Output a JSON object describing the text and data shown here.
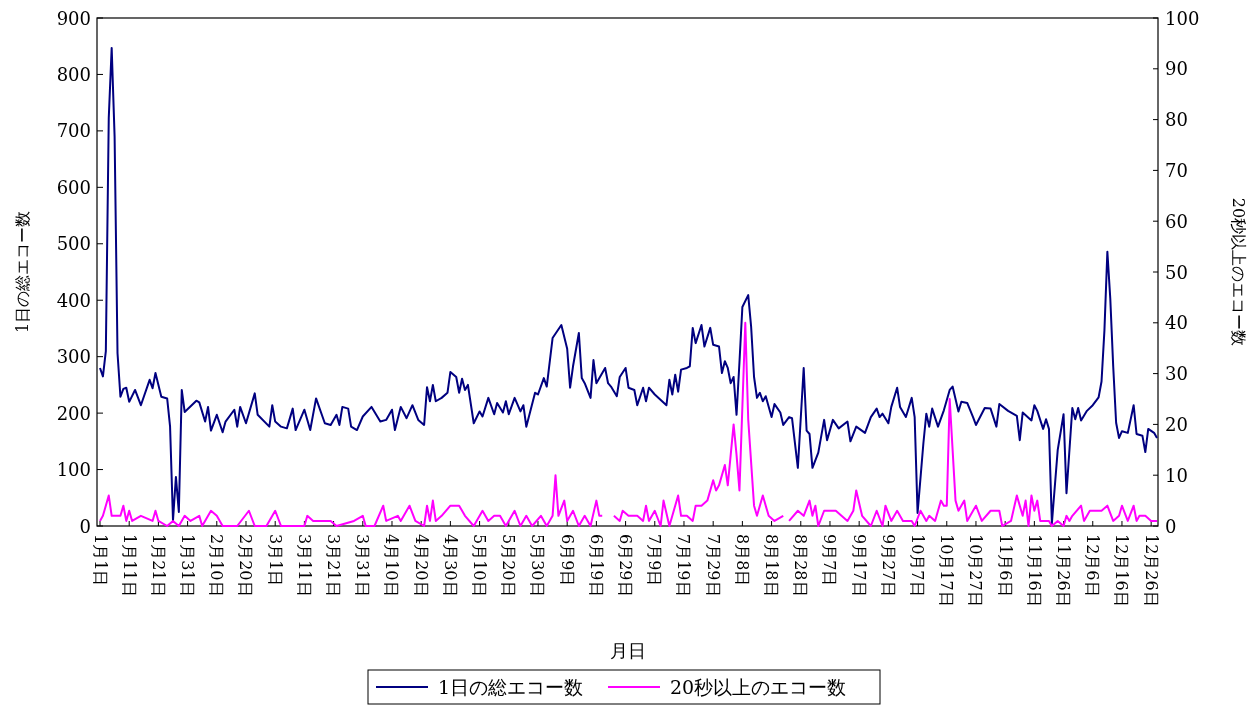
{
  "chart_data": {
    "type": "line",
    "xlabel": "月日",
    "ylabel": "1日の総エコー数",
    "y2label": "20秒以上のエコー数",
    "legend": "bottom",
    "marker": "none",
    "xlim": [
      "--01-01",
      "--12-28"
    ],
    "xticks": [
      {
        "value": "--01-01",
        "label": "1月1日"
      },
      {
        "value": "--01-11",
        "label": "1月11日"
      },
      {
        "value": "--01-21",
        "label": "1月21日"
      },
      {
        "value": "--01-31",
        "label": "1月31日"
      },
      {
        "value": "--02-10",
        "label": "2月10日"
      },
      {
        "value": "--02-20",
        "label": "2月20日"
      },
      {
        "value": "--03-01",
        "label": "3月1日"
      },
      {
        "value": "--03-11",
        "label": "3月11日"
      },
      {
        "value": "--03-21",
        "label": "3月21日"
      },
      {
        "value": "--03-31",
        "label": "3月31日"
      },
      {
        "value": "--04-10",
        "label": "4月10日"
      },
      {
        "value": "--04-20",
        "label": "4月20日"
      },
      {
        "value": "--04-30",
        "label": "4月30日"
      },
      {
        "value": "--05-10",
        "label": "5月10日"
      },
      {
        "value": "--05-20",
        "label": "5月20日"
      },
      {
        "value": "--05-30",
        "label": "5月30日"
      },
      {
        "value": "--06-09",
        "label": "6月9日"
      },
      {
        "value": "--06-19",
        "label": "6月19日"
      },
      {
        "value": "--06-29",
        "label": "6月29日"
      },
      {
        "value": "--07-09",
        "label": "7月9日"
      },
      {
        "value": "--07-19",
        "label": "7月19日"
      },
      {
        "value": "--07-29",
        "label": "7月29日"
      },
      {
        "value": "--08-08",
        "label": "8月8日"
      },
      {
        "value": "--08-18",
        "label": "8月18日"
      },
      {
        "value": "--08-28",
        "label": "8月28日"
      },
      {
        "value": "--09-07",
        "label": "9月7日"
      },
      {
        "value": "--09-17",
        "label": "9月17日"
      },
      {
        "value": "--09-27",
        "label": "9月27日"
      },
      {
        "value": "--10-07",
        "label": "10月7日"
      },
      {
        "value": "--10-17",
        "label": "10月17日"
      },
      {
        "value": "--10-27",
        "label": "10月27日"
      },
      {
        "value": "--11-06",
        "label": "11月6日"
      },
      {
        "value": "--11-16",
        "label": "11月16日"
      },
      {
        "value": "--11-26",
        "label": "11月26日"
      },
      {
        "value": "--12-06",
        "label": "12月6日"
      },
      {
        "value": "--12-16",
        "label": "12月16日"
      },
      {
        "value": "--12-26",
        "label": "12月26日"
      }
    ],
    "ylim": [
      0,
      900
    ],
    "yticks": [
      0,
      100,
      200,
      300,
      400,
      500,
      600,
      700,
      800,
      900
    ],
    "y2lim": [
      0,
      100
    ],
    "y2ticks": [
      0,
      10,
      20,
      30,
      40,
      50,
      60,
      70,
      80,
      90,
      100
    ],
    "series": [
      {
        "name": "1日の総エコー数",
        "color": "#000080",
        "x": [
          "--01-01",
          "--01-02",
          "--01-03",
          "--01-04",
          "--01-05",
          "--01-06",
          "--01-07",
          "--01-08",
          "--01-09",
          "--01-10",
          "--01-11",
          "--01-13",
          "--01-15",
          "--01-18",
          "--01-19",
          "--01-20",
          "--01-22",
          "--01-24",
          "--01-25",
          "--01-26",
          "--01-27",
          "--01-28",
          "--01-29",
          "--01-30",
          "--02-03",
          "--02-04",
          "--02-06",
          "--02-07",
          "--02-08",
          "--02-10",
          "--02-12",
          "--02-13",
          "--02-16",
          "--02-17",
          "--02-18",
          "--02-20",
          "--02-23",
          "--02-24",
          "--02-28",
          "--02-29",
          "--03-01",
          "--03-03",
          "--03-05",
          "--03-07",
          "--03-08",
          "--03-11",
          "--03-13",
          "--03-15",
          "--03-18",
          "--03-20",
          "--03-22",
          "--03-23",
          "--03-24",
          "--03-26",
          "--03-27",
          "--03-29",
          "--03-31",
          "--04-03",
          "--04-06",
          "--04-08",
          "--04-10",
          "--04-11",
          "--04-13",
          "--04-15",
          "--04-17",
          "--04-19",
          "--04-21",
          "--04-22",
          "--04-23",
          "--04-24",
          "--04-25",
          "--04-27",
          "--04-29",
          "--04-30",
          "--05-02",
          "--05-03",
          "--05-04",
          "--05-05",
          "--05-06",
          "--05-08",
          "--05-10",
          "--05-11",
          "--05-13",
          "--05-15",
          "--05-16",
          "--05-18",
          "--05-19",
          "--05-20",
          "--05-22",
          "--05-24",
          "--05-25",
          "--05-26",
          "--05-29",
          "--05-30",
          "--06-01",
          "--06-02",
          "--06-04",
          "--06-07",
          "--06-09",
          "--06-10",
          "--06-11",
          "--06-13",
          "--06-14",
          "--06-15",
          "--06-17",
          "--06-18",
          "--06-19",
          "--06-22",
          "--06-23",
          "--06-24",
          "--06-26",
          "--06-27",
          "--06-29",
          "--06-30",
          "--07-02",
          "--07-03",
          "--07-05",
          "--07-06",
          "--07-07",
          "--07-09",
          "--07-13",
          "--07-14",
          "--07-15",
          "--07-16",
          "--07-17",
          "--07-18",
          "--07-20",
          "--07-21",
          "--07-22",
          "--07-23",
          "--07-25",
          "--07-26",
          "--07-28",
          "--07-29",
          "--07-31",
          "--08-01",
          "--08-02",
          "--08-03",
          "--08-04",
          "--08-05",
          "--08-06",
          "--08-07",
          "--08-08",
          "--08-10",
          "--08-11",
          "--08-12",
          "--08-13",
          "--08-14",
          "--08-15",
          "--08-16",
          "--08-18",
          "--08-19",
          "--08-21",
          "--08-22",
          "--08-24",
          "--08-25",
          "--08-27",
          "--08-29",
          "--08-30",
          "--08-31",
          "--09-01",
          "--09-03",
          "--09-05",
          "--09-06",
          "--09-08",
          "--09-10",
          "--09-13",
          "--09-14",
          "--09-16",
          "--09-19",
          "--09-21",
          "--09-23",
          "--09-24",
          "--09-25",
          "--09-27",
          "--09-28",
          "--09-30",
          "--10-01",
          "--10-03",
          "--10-05",
          "--10-06",
          "--10-07",
          "--10-09",
          "--10-10",
          "--10-11",
          "--10-12",
          "--10-14",
          "--10-16",
          "--10-18",
          "--10-19",
          "--10-21",
          "--10-22",
          "--10-24",
          "--10-26",
          "--10-27",
          "--10-30",
          "--11-01",
          "--11-03",
          "--11-04",
          "--11-07",
          "--11-10",
          "--11-11",
          "--11-12",
          "--11-15",
          "--11-16",
          "--11-17",
          "--11-19",
          "--11-20",
          "--11-21",
          "--11-22",
          "--11-24",
          "--11-26",
          "--11-27",
          "--11-29",
          "--11-30",
          "--12-01",
          "--12-02",
          "--12-04",
          "--12-06",
          "--12-08",
          "--12-09",
          "--12-10",
          "--12-11",
          "--12-12",
          "--12-13",
          "--12-14",
          "--12-15",
          "--12-16",
          "--12-18",
          "--12-20",
          "--12-21",
          "--12-23",
          "--12-24",
          "--12-25",
          "--12-27",
          "--12-28"
        ],
        "values": [
          280,
          265,
          310,
          723,
          847,
          690,
          306,
          229,
          243,
          245,
          220,
          241,
          214,
          259,
          244,
          271,
          229,
          226,
          176,
          10,
          87,
          25,
          241,
          202,
          222,
          219,
          185,
          211,
          169,
          197,
          166,
          185,
          206,
          176,
          211,
          182,
          235,
          197,
          176,
          214,
          185,
          176,
          173,
          208,
          170,
          206,
          170,
          226,
          182,
          179,
          197,
          179,
          211,
          208,
          176,
          170,
          194,
          211,
          185,
          188,
          206,
          170,
          211,
          191,
          214,
          188,
          179,
          246,
          221,
          250,
          221,
          227,
          236,
          273,
          264,
          236,
          261,
          241,
          250,
          182,
          203,
          194,
          227,
          198,
          218,
          201,
          221,
          198,
          227,
          203,
          214,
          176,
          236,
          233,
          262,
          247,
          333,
          356,
          314,
          245,
          283,
          342,
          262,
          253,
          227,
          294,
          253,
          280,
          253,
          247,
          230,
          264,
          280,
          245,
          241,
          214,
          245,
          221,
          245,
          233,
          214,
          259,
          233,
          268,
          238,
          277,
          280,
          283,
          351,
          324,
          356,
          318,
          351,
          321,
          318,
          271,
          292,
          280,
          253,
          264,
          197,
          290,
          388,
          409,
          353,
          264,
          227,
          236,
          221,
          230,
          193,
          216,
          201,
          179,
          193,
          191,
          103,
          280,
          169,
          163,
          103,
          130,
          188,
          152,
          188,
          173,
          185,
          150,
          176,
          165,
          193,
          208,
          193,
          199,
          182,
          211,
          245,
          211,
          193,
          227,
          193,
          23,
          147,
          199,
          176,
          208,
          176,
          205,
          241,
          247,
          203,
          220,
          218,
          193,
          179,
          209,
          208,
          176,
          216,
          204,
          195,
          152,
          201,
          187,
          214,
          204,
          172,
          189,
          172,
          5,
          135,
          198,
          58,
          209,
          189,
          209,
          187,
          204,
          214,
          228,
          256,
          347,
          486,
          403,
          283,
          183,
          156,
          168,
          165,
          214,
          163,
          160,
          131,
          172,
          165,
          156
        ]
      },
      {
        "name": "20秒以上のエコー数",
        "color": "#ff00ff",
        "axis": "y2",
        "x": [
          "--01-01",
          "--01-02",
          "--01-04",
          "--01-05",
          "--01-08",
          "--01-09",
          "--01-10",
          "--01-11",
          "--01-12",
          "--01-15",
          "--01-19",
          "--01-20",
          "--01-21",
          "--01-24",
          "--01-26",
          "--01-28",
          "--01-30",
          "--02-01",
          "--02-04",
          "--02-05",
          "--02-08",
          "--02-10",
          "--02-12",
          "--02-17",
          "--02-21",
          "--02-23",
          "--02-27",
          "--03-01",
          "--03-03",
          "--03-11",
          "--03-12",
          "--03-14",
          "--03-18",
          "--03-20",
          "--03-22",
          "--03-28",
          "--03-31",
          "--04-01",
          "--04-04",
          "--04-07",
          "--04-08",
          "--04-12",
          "--04-13",
          "--04-16",
          "--04-18",
          "--04-21",
          "--04-22",
          "--04-23",
          "--04-24",
          "--04-25",
          "--04-27",
          "--04-30",
          "--05-03",
          "--05-05",
          "--05-08",
          "--05-11",
          "--05-13",
          "--05-15",
          "--05-17",
          "--05-19",
          "--05-22",
          "--05-24",
          "--05-26",
          "--05-28",
          "--05-31",
          "--06-02",
          "--06-04",
          "--06-05",
          "--06-06",
          "--06-08",
          "--06-09",
          "--06-11",
          "--06-13",
          "--06-15",
          "--06-17",
          "--06-19",
          "--06-20",
          "--06-21",
          "--06-22",
          "--06-24",
          "--06-25",
          "--06-27",
          "--06-28",
          "--06-30",
          "--07-03",
          "--07-05",
          "--07-06",
          "--07-07",
          "--07-09",
          "--07-11",
          "--07-12",
          "--07-14",
          "--07-17",
          "--07-18",
          "--07-20",
          "--07-22",
          "--07-23",
          "--07-25",
          "--07-27",
          "--07-29",
          "--07-30",
          "--07-31",
          "--08-02",
          "--08-03",
          "--08-05",
          "--08-06",
          "--08-07",
          "--08-09",
          "--08-10",
          "--08-12",
          "--08-13",
          "--08-15",
          "--08-17",
          "--08-19",
          "--08-22",
          "--08-23",
          "--08-24",
          "--08-27",
          "--08-29",
          "--08-31",
          "--09-01",
          "--09-02",
          "--09-03",
          "--09-05",
          "--09-07",
          "--09-09",
          "--09-13",
          "--09-15",
          "--09-16",
          "--09-18",
          "--09-21",
          "--09-23",
          "--09-25",
          "--09-26",
          "--09-28",
          "--09-30",
          "--10-02",
          "--10-05",
          "--10-06",
          "--10-08",
          "--10-10",
          "--10-11",
          "--10-13",
          "--10-15",
          "--10-16",
          "--10-17",
          "--10-18",
          "--10-20",
          "--10-21",
          "--10-23",
          "--10-24",
          "--10-26",
          "--10-27",
          "--10-29",
          "--11-01",
          "--11-04",
          "--11-05",
          "--11-08",
          "--11-10",
          "--11-12",
          "--11-13",
          "--11-14",
          "--11-15",
          "--11-16",
          "--11-17",
          "--11-18",
          "--11-21",
          "--11-22",
          "--11-24",
          "--11-26",
          "--11-27",
          "--11-28",
          "--11-29",
          "--12-02",
          "--12-03",
          "--12-05",
          "--12-07",
          "--12-09",
          "--12-11",
          "--12-13",
          "--12-15",
          "--12-16",
          "--12-18",
          "--12-20",
          "--12-21",
          "--12-22",
          "--12-24",
          "--12-26",
          "--12-28"
        ],
        "values": [
          1,
          2,
          6,
          2,
          2,
          4,
          1,
          3,
          1,
          2,
          1,
          3,
          1,
          0,
          1,
          0,
          2,
          1,
          2,
          0,
          3,
          2,
          0,
          0,
          3,
          0,
          0,
          3,
          0,
          0,
          2,
          1,
          1,
          1,
          0,
          1,
          2,
          0,
          0,
          4,
          1,
          2,
          1,
          4,
          1,
          0,
          4,
          1,
          5,
          1,
          2,
          4,
          4,
          2,
          0,
          3,
          1,
          2,
          2,
          0,
          3,
          0,
          2,
          0,
          2,
          0,
          2,
          10,
          2,
          5,
          1,
          3,
          0,
          2,
          0,
          5,
          2,
          2,
          null,
          null,
          2,
          1,
          3,
          2,
          2,
          1,
          4,
          1,
          3,
          0,
          5,
          0,
          6,
          2,
          2,
          1,
          4,
          4,
          5,
          9,
          7,
          8,
          12,
          8,
          20,
          14,
          7,
          40,
          21,
          4,
          2,
          6,
          2,
          1,
          2,
          null,
          1,
          3,
          2,
          5,
          2,
          4,
          0,
          3,
          3,
          3,
          1,
          3,
          7,
          2,
          0,
          3,
          0,
          4,
          1,
          3,
          1,
          1,
          0,
          3,
          1,
          2,
          1,
          5,
          4,
          4,
          25,
          5,
          3,
          5,
          1,
          3,
          4,
          1,
          3,
          3,
          0,
          1,
          6,
          2,
          5,
          0,
          6,
          3,
          5,
          1,
          1,
          0,
          1,
          0,
          2,
          1,
          2,
          4,
          1,
          3,
          3,
          3,
          4,
          1,
          2,
          4,
          1,
          4,
          1,
          2,
          2,
          1,
          1
        ]
      }
    ]
  }
}
